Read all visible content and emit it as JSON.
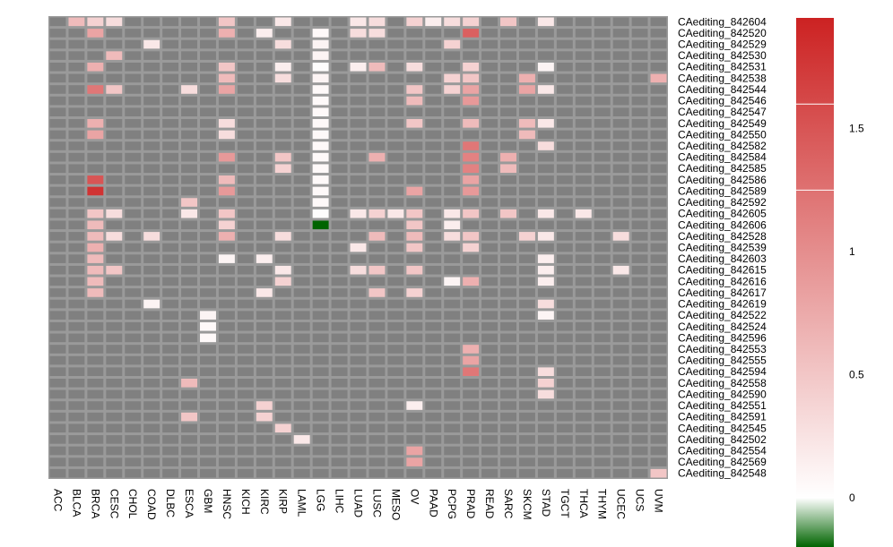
{
  "chart_data": {
    "type": "heatmap",
    "columns": [
      "ACC",
      "BLCA",
      "BRCA",
      "CESC",
      "CHOL",
      "COAD",
      "DLBC",
      "ESCA",
      "GBM",
      "HNSC",
      "KICH",
      "KIRC",
      "KIRP",
      "LAML",
      "LGG",
      "LIHC",
      "LUAD",
      "LUSC",
      "MESO",
      "OV",
      "PAAD",
      "PCPG",
      "PRAD",
      "READ",
      "SARC",
      "SKCM",
      "STAD",
      "TGCT",
      "THCA",
      "THYM",
      "UCEC",
      "UCS",
      "UVM"
    ],
    "rows": [
      "CAediting_842604",
      "CAediting_842520",
      "CAediting_842529",
      "CAediting_842530",
      "CAediting_842531",
      "CAediting_842538",
      "CAediting_842544",
      "CAediting_842546",
      "CAediting_842547",
      "CAediting_842549",
      "CAediting_842550",
      "CAediting_842582",
      "CAediting_842584",
      "CAediting_842585",
      "CAediting_842586",
      "CAediting_842589",
      "CAediting_842592",
      "CAediting_842605",
      "CAediting_842606",
      "CAediting_842528",
      "CAediting_842539",
      "CAediting_842603",
      "CAediting_842615",
      "CAediting_842616",
      "CAediting_842617",
      "CAediting_842619",
      "CAediting_842522",
      "CAediting_842524",
      "CAediting_842596",
      "CAediting_842553",
      "CAediting_842555",
      "CAediting_842594",
      "CAediting_842558",
      "CAediting_842590",
      "CAediting_842551",
      "CAediting_842591",
      "CAediting_842545",
      "CAediting_842502",
      "CAediting_842554",
      "CAediting_842569",
      "CAediting_842548"
    ],
    "missing_color": "#808080",
    "color_scale": {
      "min": -0.2,
      "max": 1.95,
      "stops": [
        {
          "value": -0.2,
          "color": "#006400"
        },
        {
          "value": 0.0,
          "color": "#ffffff"
        },
        {
          "value": 1.95,
          "color": "#cc2222"
        }
      ]
    },
    "legend_ticks": [
      0,
      0.5,
      1,
      1.5
    ],
    "cells": [
      {
        "row": 0,
        "col": 1,
        "value": 0.6
      },
      {
        "row": 0,
        "col": 2,
        "value": 0.4
      },
      {
        "row": 0,
        "col": 3,
        "value": 0.3
      },
      {
        "row": 0,
        "col": 9,
        "value": 0.5
      },
      {
        "row": 0,
        "col": 12,
        "value": 0.2
      },
      {
        "row": 0,
        "col": 16,
        "value": 0.2
      },
      {
        "row": 0,
        "col": 17,
        "value": 0.3
      },
      {
        "row": 0,
        "col": 19,
        "value": 0.4
      },
      {
        "row": 0,
        "col": 20,
        "value": 0.15
      },
      {
        "row": 0,
        "col": 21,
        "value": 0.3
      },
      {
        "row": 0,
        "col": 22,
        "value": 0.4
      },
      {
        "row": 0,
        "col": 24,
        "value": 0.5
      },
      {
        "row": 0,
        "col": 26,
        "value": 0.2
      },
      {
        "row": 1,
        "col": 2,
        "value": 0.8
      },
      {
        "row": 1,
        "col": 9,
        "value": 0.7
      },
      {
        "row": 1,
        "col": 11,
        "value": 0.15
      },
      {
        "row": 1,
        "col": 14,
        "value": 0.05
      },
      {
        "row": 1,
        "col": 16,
        "value": 0.3
      },
      {
        "row": 1,
        "col": 17,
        "value": 0.3
      },
      {
        "row": 1,
        "col": 22,
        "value": 1.4
      },
      {
        "row": 2,
        "col": 5,
        "value": 0.2
      },
      {
        "row": 2,
        "col": 12,
        "value": 0.3
      },
      {
        "row": 2,
        "col": 14,
        "value": 0.1
      },
      {
        "row": 2,
        "col": 21,
        "value": 0.4
      },
      {
        "row": 3,
        "col": 3,
        "value": 0.6
      },
      {
        "row": 3,
        "col": 14,
        "value": 0.1
      },
      {
        "row": 4,
        "col": 2,
        "value": 0.7
      },
      {
        "row": 4,
        "col": 9,
        "value": 0.5
      },
      {
        "row": 4,
        "col": 12,
        "value": 0.15
      },
      {
        "row": 4,
        "col": 14,
        "value": 0.02
      },
      {
        "row": 4,
        "col": 16,
        "value": 0.15
      },
      {
        "row": 4,
        "col": 17,
        "value": 0.6
      },
      {
        "row": 4,
        "col": 19,
        "value": 0.3
      },
      {
        "row": 4,
        "col": 22,
        "value": 0.4
      },
      {
        "row": 4,
        "col": 26,
        "value": 0.1
      },
      {
        "row": 5,
        "col": 9,
        "value": 0.6
      },
      {
        "row": 5,
        "col": 12,
        "value": 0.3
      },
      {
        "row": 5,
        "col": 14,
        "value": 0.1
      },
      {
        "row": 5,
        "col": 21,
        "value": 0.4
      },
      {
        "row": 5,
        "col": 22,
        "value": 0.5
      },
      {
        "row": 5,
        "col": 25,
        "value": 0.7
      },
      {
        "row": 5,
        "col": 32,
        "value": 0.7
      },
      {
        "row": 6,
        "col": 2,
        "value": 1.2
      },
      {
        "row": 6,
        "col": 3,
        "value": 0.5
      },
      {
        "row": 6,
        "col": 7,
        "value": 0.3
      },
      {
        "row": 6,
        "col": 9,
        "value": 0.8
      },
      {
        "row": 6,
        "col": 14,
        "value": 0.05
      },
      {
        "row": 6,
        "col": 19,
        "value": 0.5
      },
      {
        "row": 6,
        "col": 21,
        "value": 0.4
      },
      {
        "row": 6,
        "col": 22,
        "value": 0.8
      },
      {
        "row": 6,
        "col": 25,
        "value": 0.8
      },
      {
        "row": 6,
        "col": 26,
        "value": 0.2
      },
      {
        "row": 7,
        "col": 14,
        "value": 0.05
      },
      {
        "row": 7,
        "col": 19,
        "value": 0.6
      },
      {
        "row": 7,
        "col": 22,
        "value": 0.9
      },
      {
        "row": 8,
        "col": 14,
        "value": 0.05
      },
      {
        "row": 9,
        "col": 2,
        "value": 0.7
      },
      {
        "row": 9,
        "col": 9,
        "value": 0.3
      },
      {
        "row": 9,
        "col": 14,
        "value": 0.05
      },
      {
        "row": 9,
        "col": 19,
        "value": 0.5
      },
      {
        "row": 9,
        "col": 22,
        "value": 0.6
      },
      {
        "row": 9,
        "col": 25,
        "value": 0.6
      },
      {
        "row": 9,
        "col": 26,
        "value": 0.2
      },
      {
        "row": 10,
        "col": 2,
        "value": 0.8
      },
      {
        "row": 10,
        "col": 9,
        "value": 0.3
      },
      {
        "row": 10,
        "col": 14,
        "value": 0.05
      },
      {
        "row": 10,
        "col": 25,
        "value": 0.6
      },
      {
        "row": 11,
        "col": 14,
        "value": 0.05
      },
      {
        "row": 11,
        "col": 22,
        "value": 1.2
      },
      {
        "row": 11,
        "col": 26,
        "value": 0.3
      },
      {
        "row": 12,
        "col": 9,
        "value": 0.9
      },
      {
        "row": 12,
        "col": 12,
        "value": 0.5
      },
      {
        "row": 12,
        "col": 14,
        "value": 0.05
      },
      {
        "row": 12,
        "col": 17,
        "value": 0.7
      },
      {
        "row": 12,
        "col": 22,
        "value": 1.1
      },
      {
        "row": 12,
        "col": 24,
        "value": 0.7
      },
      {
        "row": 13,
        "col": 12,
        "value": 0.4
      },
      {
        "row": 13,
        "col": 14,
        "value": 0.05
      },
      {
        "row": 13,
        "col": 22,
        "value": 1.1
      },
      {
        "row": 13,
        "col": 24,
        "value": 0.6
      },
      {
        "row": 14,
        "col": 2,
        "value": 1.5
      },
      {
        "row": 14,
        "col": 9,
        "value": 0.6
      },
      {
        "row": 14,
        "col": 14,
        "value": 0.05
      },
      {
        "row": 14,
        "col": 22,
        "value": 0.8
      },
      {
        "row": 15,
        "col": 2,
        "value": 1.8
      },
      {
        "row": 15,
        "col": 9,
        "value": 0.9
      },
      {
        "row": 15,
        "col": 14,
        "value": 0.05
      },
      {
        "row": 15,
        "col": 19,
        "value": 0.8
      },
      {
        "row": 15,
        "col": 22,
        "value": 0.9
      },
      {
        "row": 16,
        "col": 7,
        "value": 0.5
      },
      {
        "row": 16,
        "col": 14,
        "value": 0.05
      },
      {
        "row": 17,
        "col": 2,
        "value": 0.5
      },
      {
        "row": 17,
        "col": 3,
        "value": 0.3
      },
      {
        "row": 17,
        "col": 7,
        "value": 0.2
      },
      {
        "row": 17,
        "col": 9,
        "value": 0.5
      },
      {
        "row": 17,
        "col": 14,
        "value": 0.02
      },
      {
        "row": 17,
        "col": 16,
        "value": 0.2
      },
      {
        "row": 17,
        "col": 17,
        "value": 0.4
      },
      {
        "row": 17,
        "col": 18,
        "value": 0.2
      },
      {
        "row": 17,
        "col": 19,
        "value": 0.5
      },
      {
        "row": 17,
        "col": 21,
        "value": 0.2
      },
      {
        "row": 17,
        "col": 22,
        "value": 0.5
      },
      {
        "row": 17,
        "col": 24,
        "value": 0.5
      },
      {
        "row": 17,
        "col": 26,
        "value": 0.2
      },
      {
        "row": 17,
        "col": 28,
        "value": 0.2
      },
      {
        "row": 18,
        "col": 2,
        "value": 0.6
      },
      {
        "row": 18,
        "col": 9,
        "value": 0.4
      },
      {
        "row": 18,
        "col": 14,
        "value": -0.2
      },
      {
        "row": 18,
        "col": 19,
        "value": 0.5
      },
      {
        "row": 18,
        "col": 21,
        "value": 0.15
      },
      {
        "row": 19,
        "col": 2,
        "value": 0.6
      },
      {
        "row": 19,
        "col": 3,
        "value": 0.3
      },
      {
        "row": 19,
        "col": 5,
        "value": 0.3
      },
      {
        "row": 19,
        "col": 9,
        "value": 0.7
      },
      {
        "row": 19,
        "col": 12,
        "value": 0.3
      },
      {
        "row": 19,
        "col": 17,
        "value": 0.6
      },
      {
        "row": 19,
        "col": 19,
        "value": 0.6
      },
      {
        "row": 19,
        "col": 21,
        "value": 0.3
      },
      {
        "row": 19,
        "col": 22,
        "value": 0.5
      },
      {
        "row": 19,
        "col": 25,
        "value": 0.4
      },
      {
        "row": 19,
        "col": 26,
        "value": 0.2
      },
      {
        "row": 19,
        "col": 30,
        "value": 0.3
      },
      {
        "row": 20,
        "col": 2,
        "value": 0.7
      },
      {
        "row": 20,
        "col": 16,
        "value": 0.2
      },
      {
        "row": 20,
        "col": 19,
        "value": 0.5
      },
      {
        "row": 20,
        "col": 22,
        "value": 0.4
      },
      {
        "row": 21,
        "col": 2,
        "value": 0.6
      },
      {
        "row": 21,
        "col": 9,
        "value": 0.1
      },
      {
        "row": 21,
        "col": 11,
        "value": 0.15
      },
      {
        "row": 21,
        "col": 26,
        "value": 0.15
      },
      {
        "row": 22,
        "col": 2,
        "value": 0.6
      },
      {
        "row": 22,
        "col": 3,
        "value": 0.5
      },
      {
        "row": 22,
        "col": 12,
        "value": 0.2
      },
      {
        "row": 22,
        "col": 16,
        "value": 0.3
      },
      {
        "row": 22,
        "col": 17,
        "value": 0.5
      },
      {
        "row": 22,
        "col": 19,
        "value": 0.5
      },
      {
        "row": 22,
        "col": 26,
        "value": 0.15
      },
      {
        "row": 22,
        "col": 30,
        "value": 0.2
      },
      {
        "row": 23,
        "col": 2,
        "value": 0.6
      },
      {
        "row": 23,
        "col": 12,
        "value": 0.4
      },
      {
        "row": 23,
        "col": 21,
        "value": 0.1
      },
      {
        "row": 23,
        "col": 22,
        "value": 0.7
      },
      {
        "row": 23,
        "col": 26,
        "value": 0.15
      },
      {
        "row": 24,
        "col": 2,
        "value": 0.6
      },
      {
        "row": 24,
        "col": 11,
        "value": 0.2
      },
      {
        "row": 24,
        "col": 17,
        "value": 0.5
      },
      {
        "row": 24,
        "col": 19,
        "value": 0.4
      },
      {
        "row": 25,
        "col": 5,
        "value": 0.1
      },
      {
        "row": 25,
        "col": 26,
        "value": 0.3
      },
      {
        "row": 26,
        "col": 8,
        "value": 0.1
      },
      {
        "row": 26,
        "col": 26,
        "value": 0.1
      },
      {
        "row": 27,
        "col": 8,
        "value": 0.05
      },
      {
        "row": 28,
        "col": 8,
        "value": 0.05
      },
      {
        "row": 29,
        "col": 22,
        "value": 0.7
      },
      {
        "row": 30,
        "col": 22,
        "value": 0.8
      },
      {
        "row": 31,
        "col": 22,
        "value": 1.2
      },
      {
        "row": 31,
        "col": 26,
        "value": 0.3
      },
      {
        "row": 32,
        "col": 7,
        "value": 0.6
      },
      {
        "row": 32,
        "col": 26,
        "value": 0.4
      },
      {
        "row": 33,
        "col": 26,
        "value": 0.3
      },
      {
        "row": 34,
        "col": 11,
        "value": 0.4
      },
      {
        "row": 34,
        "col": 19,
        "value": 0.15
      },
      {
        "row": 35,
        "col": 7,
        "value": 0.5
      },
      {
        "row": 35,
        "col": 11,
        "value": 0.4
      },
      {
        "row": 36,
        "col": 12,
        "value": 0.4
      },
      {
        "row": 37,
        "col": 13,
        "value": 0.2
      },
      {
        "row": 38,
        "col": 19,
        "value": 0.8
      },
      {
        "row": 39,
        "col": 19,
        "value": 0.8
      },
      {
        "row": 40,
        "col": 32,
        "value": 0.5
      }
    ]
  }
}
